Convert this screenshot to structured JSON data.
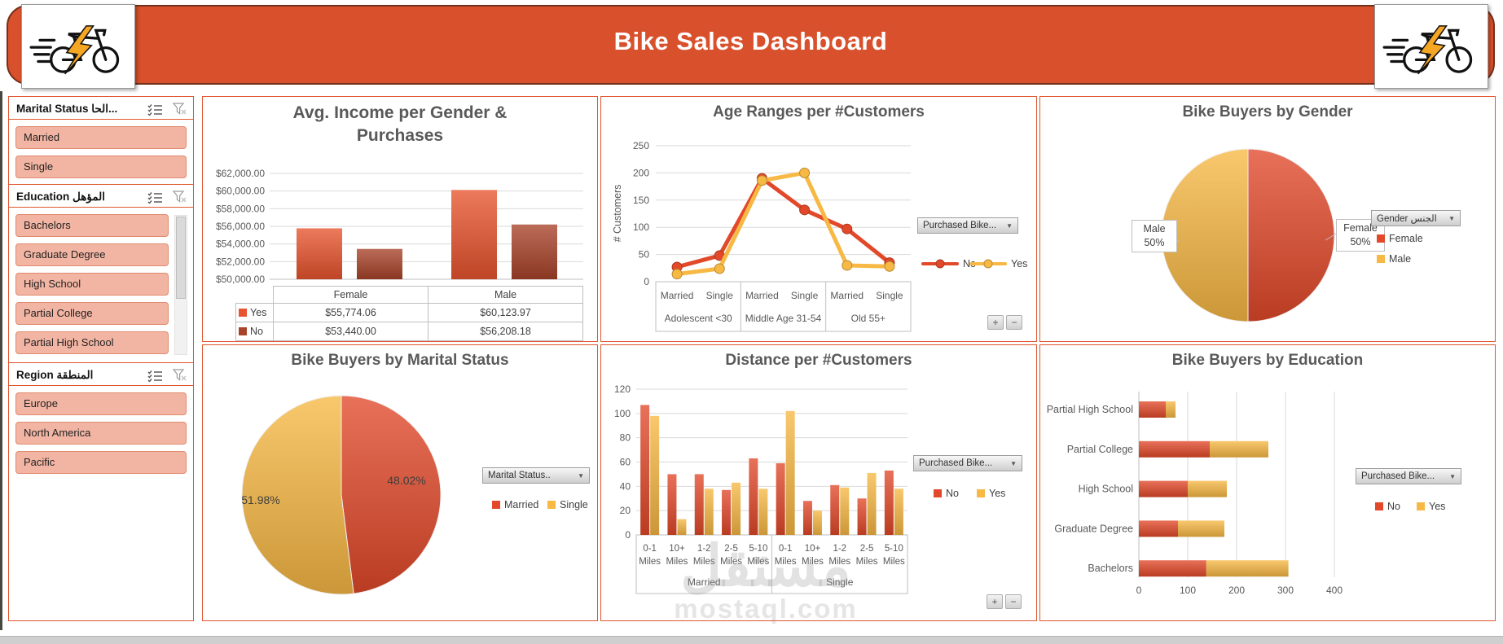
{
  "header": {
    "title": "Bike Sales Dashboard"
  },
  "icons": {
    "dropdown_arrow": "▼"
  },
  "colors": {
    "banner": "#D9502C",
    "banner_border": "#73301A",
    "panel_border": "#E0562E",
    "series_no_red": "#E2492A",
    "series_no_dark": "#A8432A",
    "series_yes_yellow": "#F7B844",
    "slicer_fill": "#F3B5A3",
    "slicer_border": "#E08A6D",
    "axis_text": "#595959",
    "gridline": "#D9D9D9"
  },
  "pivot_controls": {
    "expand": "+",
    "collapse": "−"
  },
  "watermark": {
    "logo_text": "مستقل",
    "site_text": "mostaql.com"
  },
  "slicers": [
    {
      "title": "Marital Status الحا...",
      "items": [
        "Married",
        "Single"
      ],
      "has_scrollbar": false
    },
    {
      "title": "Education المؤهل",
      "items": [
        "Bachelors",
        "Graduate Degree",
        "High School",
        "Partial College",
        "Partial High School"
      ],
      "has_scrollbar": true
    },
    {
      "title": "Region المنطقة",
      "items": [
        "Europe",
        "North America",
        "Pacific"
      ],
      "has_scrollbar": false
    }
  ],
  "chart_data": [
    {
      "id": "avg-income",
      "type": "bar",
      "title": "Avg. Income per Gender & Purchases",
      "categories": [
        "Female",
        "Male"
      ],
      "series": [
        {
          "name": "Yes",
          "color": "#E8542E",
          "values": [
            55774.06,
            60123.97
          ]
        },
        {
          "name": "No",
          "color": "#A8432A",
          "values": [
            53440.0,
            56208.18
          ]
        }
      ],
      "ylim": [
        50000,
        62000
      ],
      "yticks": [
        "$62,000.00",
        "$60,000.00",
        "$58,000.00",
        "$56,000.00",
        "$54,000.00",
        "$52,000.00",
        "$50,000.00"
      ],
      "grid": true,
      "table": {
        "columns": [
          "Female",
          "Male"
        ],
        "row_labels": [
          "Yes",
          "No"
        ],
        "rows": [
          [
            "$55,774.06",
            "$60,123.97"
          ],
          [
            "$53,440.00",
            "$56,208.18"
          ]
        ]
      }
    },
    {
      "id": "age-ranges",
      "type": "line",
      "title": "Age Ranges per #Customers",
      "ylabel": "# Customers",
      "categories": [
        "Married",
        "Single",
        "Married",
        "Single",
        "Married",
        "Single"
      ],
      "group_labels": [
        "Adolescent <30",
        "Middle Age 31-54",
        "Old 55+"
      ],
      "series": [
        {
          "name": "No",
          "color": "#E2492A",
          "values": [
            27,
            48,
            190,
            132,
            97,
            35
          ]
        },
        {
          "name": "Yes",
          "color": "#F7B844",
          "values": [
            14,
            24,
            186,
            200,
            30,
            28
          ]
        }
      ],
      "ylim": [
        0,
        250
      ],
      "yticks": [
        250,
        200,
        150,
        100,
        50,
        0
      ],
      "grid": true,
      "legend_position": "right",
      "field_button": "Purchased Bike...",
      "has_pivot_buttons": true
    },
    {
      "id": "gender",
      "type": "pie",
      "title": "Bike Buyers by Gender",
      "slices": [
        {
          "label": "Female",
          "value": 50,
          "display": "50%",
          "color": "#E2492A"
        },
        {
          "label": "Male",
          "value": 50,
          "display": "50%",
          "color": "#F7B844"
        }
      ],
      "callouts": [
        {
          "line1": "Male",
          "line2": "50%"
        },
        {
          "line1": "Female",
          "line2": "50%"
        }
      ],
      "field_button": "Gender الجنس",
      "legend_position": "right"
    },
    {
      "id": "marital",
      "type": "pie",
      "title": "Bike Buyers by Marital Status",
      "slices": [
        {
          "label": "Married",
          "value": 48.02,
          "display": "48.02%",
          "color": "#E2492A"
        },
        {
          "label": "Single",
          "value": 51.98,
          "display": "51.98%",
          "color": "#F7B844"
        }
      ],
      "field_button": "Marital Status..",
      "legend_position": "right"
    },
    {
      "id": "distance",
      "type": "bar",
      "title": "Distance per #Customers",
      "categories": [
        "0-1 Miles",
        "10+ Miles",
        "1-2 Miles",
        "2-5 Miles",
        "5-10 Miles",
        "0-1 Miles",
        "10+ Miles",
        "1-2 Miles",
        "2-5 Miles",
        "5-10 Miles"
      ],
      "group_labels": [
        "Married",
        "Single"
      ],
      "series": [
        {
          "name": "No",
          "color": "#E2492A",
          "values": [
            107,
            50,
            50,
            37,
            63,
            59,
            28,
            41,
            30,
            53
          ]
        },
        {
          "name": "Yes",
          "color": "#F7B844",
          "values": [
            98,
            13,
            38,
            43,
            38,
            102,
            20,
            39,
            51,
            38
          ]
        }
      ],
      "ylim": [
        0,
        120
      ],
      "yticks": [
        120,
        100,
        80,
        60,
        40,
        20,
        0
      ],
      "grid": true,
      "legend_position": "right",
      "field_button": "Purchased Bike...",
      "has_pivot_buttons": true
    },
    {
      "id": "education",
      "type": "stacked-bar-horizontal",
      "title": "Bike Buyers by Education",
      "categories": [
        "Partial High School",
        "Partial College",
        "High School",
        "Graduate Degree",
        "Bachelors"
      ],
      "series": [
        {
          "name": "No",
          "color": "#E2492A",
          "values": [
            55,
            145,
            100,
            80,
            138
          ]
        },
        {
          "name": "Yes",
          "color": "#F7B844",
          "values": [
            20,
            120,
            80,
            95,
            168
          ]
        }
      ],
      "xlim": [
        0,
        400
      ],
      "xticks": [
        0,
        100,
        200,
        300,
        400
      ],
      "grid": true,
      "legend_position": "right",
      "field_button": "Purchased Bike..."
    }
  ]
}
